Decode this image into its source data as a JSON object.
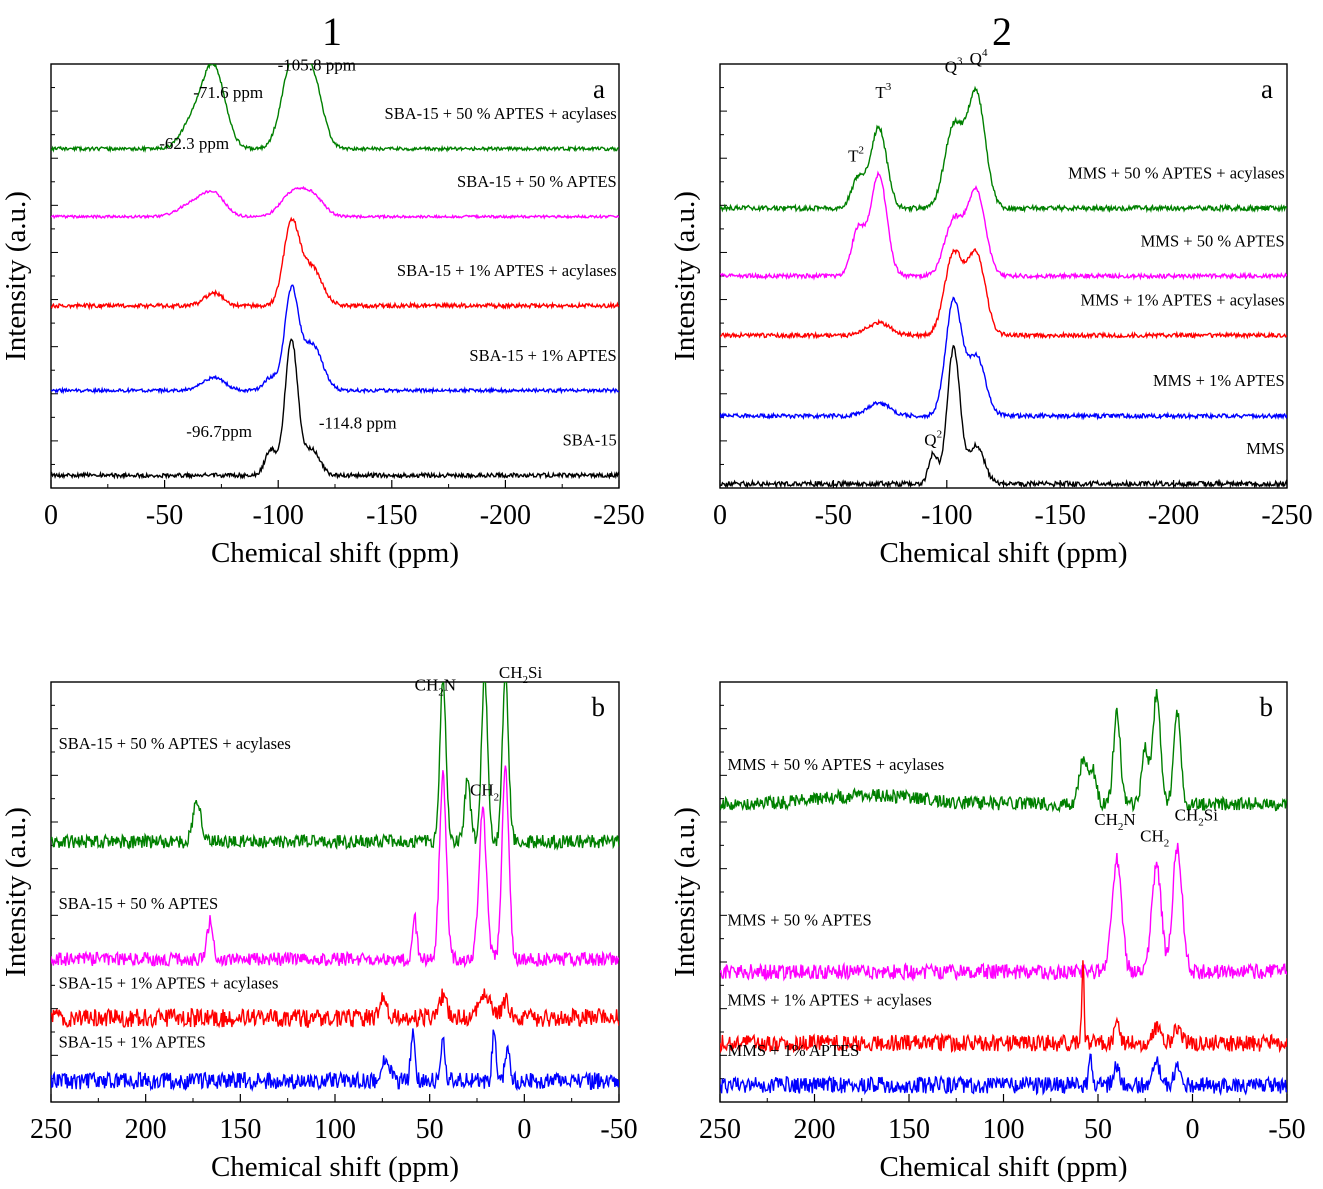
{
  "column_headers": [
    "1",
    "2"
  ],
  "colors": {
    "green": "#008000",
    "magenta": "#ff00ff",
    "red": "#ff0000",
    "blue": "#0000ff",
    "black": "#000000"
  },
  "chart_data": [
    {
      "id": "1a",
      "type": "line",
      "panel_label": "a",
      "xlabel": "Chemical shift (ppm)",
      "ylabel": "Intensity (a.u.)",
      "xlim": [
        0,
        -250
      ],
      "xticks": [
        0,
        -50,
        -100,
        -150,
        -200,
        -250
      ],
      "series": [
        {
          "name": "SBA-15 + 50 % APTES + acylases",
          "color": "#008000",
          "offset": 0.8,
          "noise": 0.004,
          "seed": 11,
          "peaks": [
            [
              -62.3,
              0.06,
              5
            ],
            [
              -71.6,
              0.19,
              5
            ],
            [
              -105.8,
              0.19,
              4.5
            ],
            [
              -114.8,
              0.17,
              4.5
            ]
          ]
        },
        {
          "name": "SBA-15 + 50 % APTES",
          "color": "#ff00ff",
          "offset": 0.64,
          "noise": 0.003,
          "seed": 12,
          "peaks": [
            [
              -62.3,
              0.03,
              6
            ],
            [
              -71.6,
              0.05,
              5
            ],
            [
              -105.8,
              0.05,
              5
            ],
            [
              -114.8,
              0.05,
              5
            ]
          ]
        },
        {
          "name": "SBA-15 + 1% APTES + acylases",
          "color": "#ff0000",
          "offset": 0.43,
          "noise": 0.005,
          "seed": 13,
          "peaks": [
            [
              -71.6,
              0.03,
              4
            ],
            [
              -105.8,
              0.19,
              3.5
            ],
            [
              -114.8,
              0.09,
              4.5
            ]
          ]
        },
        {
          "name": "SBA-15 + 1% APTES",
          "color": "#0000ff",
          "offset": 0.23,
          "noise": 0.004,
          "seed": 14,
          "peaks": [
            [
              -71.6,
              0.03,
              5
            ],
            [
              -96.7,
              0.03,
              3
            ],
            [
              -105.8,
              0.23,
              3
            ],
            [
              -114.8,
              0.11,
              4.5
            ]
          ]
        },
        {
          "name": "SBA-15",
          "color": "#000000",
          "offset": 0.03,
          "noise": 0.005,
          "seed": 15,
          "peaks": [
            [
              -96.7,
              0.06,
              2.5
            ],
            [
              -105.8,
              0.32,
              2.8
            ],
            [
              -114.8,
              0.06,
              3.5
            ]
          ]
        }
      ],
      "annotations": [
        {
          "text": "-105.8 ppm",
          "x": -117,
          "y": 0.985
        },
        {
          "text": "-71.6 ppm",
          "x": -78,
          "y": 0.92
        },
        {
          "text": "-62.3 ppm",
          "x": -63,
          "y": 0.8
        },
        {
          "text": "-96.7ppm",
          "x": -74,
          "y": 0.12
        },
        {
          "text": "-114.8 ppm",
          "x": -135,
          "y": 0.14
        }
      ]
    },
    {
      "id": "2a",
      "type": "line",
      "panel_label": "a",
      "xlabel": "Chemical shift (ppm)",
      "ylabel": "Intensity (a.u.)",
      "xlim": [
        0,
        -250
      ],
      "xticks": [
        0,
        -50,
        -100,
        -150,
        -200,
        -250
      ],
      "series": [
        {
          "name": "MMS + 50 % APTES + acylases",
          "color": "#008000",
          "offset": 0.66,
          "noise": 0.006,
          "seed": 21,
          "peaks": [
            [
              -61,
              0.07,
              3
            ],
            [
              -70,
              0.19,
              3.5
            ],
            [
              -103,
              0.19,
              4
            ],
            [
              -113,
              0.27,
              4
            ]
          ]
        },
        {
          "name": "MMS + 50 % APTES",
          "color": "#ff00ff",
          "offset": 0.5,
          "noise": 0.005,
          "seed": 22,
          "peaks": [
            [
              -61,
              0.11,
              3
            ],
            [
              -70,
              0.24,
              3.5
            ],
            [
              -103,
              0.13,
              4
            ],
            [
              -113,
              0.2,
              4
            ]
          ]
        },
        {
          "name": "MMS + 1% APTES + acylases",
          "color": "#ff0000",
          "offset": 0.36,
          "noise": 0.005,
          "seed": 23,
          "peaks": [
            [
              -70,
              0.03,
              5
            ],
            [
              -103,
              0.19,
              4
            ],
            [
              -113,
              0.19,
              4
            ]
          ]
        },
        {
          "name": "MMS + 1% APTES",
          "color": "#0000ff",
          "offset": 0.17,
          "noise": 0.005,
          "seed": 24,
          "peaks": [
            [
              -70,
              0.03,
              5
            ],
            [
              -103,
              0.27,
              3.5
            ],
            [
              -113,
              0.14,
              4
            ]
          ]
        },
        {
          "name": "MMS",
          "color": "#000000",
          "offset": 0.01,
          "noise": 0.006,
          "seed": 25,
          "peaks": [
            [
              -94,
              0.07,
              2
            ],
            [
              -103,
              0.32,
              2.8
            ],
            [
              -113,
              0.09,
              3.5
            ]
          ]
        }
      ],
      "annotations": [
        {
          "text": "T",
          "sup": "2",
          "x": -60,
          "y": 0.77
        },
        {
          "text": "T",
          "sup": "3",
          "x": -72,
          "y": 0.92
        },
        {
          "text": "Q",
          "sup": "3",
          "x": -103,
          "y": 0.98
        },
        {
          "text": "Q",
          "sup": "4",
          "x": -114,
          "y": 1.0
        },
        {
          "text": "Q",
          "sup": "2",
          "x": -94,
          "y": 0.1
        }
      ]
    },
    {
      "id": "1b",
      "type": "line",
      "panel_label": "b",
      "xlabel": "Chemical shift (ppm)",
      "ylabel": "Intensity (a.u.)",
      "xlim": [
        250,
        -50
      ],
      "xticks": [
        250,
        200,
        150,
        100,
        50,
        0,
        -50
      ],
      "series": [
        {
          "name": "SBA-15 + 50 % APTES + acylases",
          "color": "#008000",
          "offset": 0.62,
          "noise": 0.016,
          "seed": 31,
          "peaks": [
            [
              173,
              0.1,
              2
            ],
            [
              43,
              0.38,
              1.6
            ],
            [
              30,
              0.15,
              1.5
            ],
            [
              21,
              0.4,
              1.6
            ],
            [
              10,
              0.4,
              1.6
            ]
          ],
          "label_y": 0.84
        },
        {
          "name": "SBA-15 + 50 % APTES",
          "color": "#ff00ff",
          "offset": 0.34,
          "noise": 0.016,
          "seed": 32,
          "peaks": [
            [
              166,
              0.09,
              1.5
            ],
            [
              58,
              0.1,
              1.2
            ],
            [
              43,
              0.44,
              1.8
            ],
            [
              22,
              0.35,
              2
            ],
            [
              10,
              0.45,
              1.8
            ]
          ],
          "label_y": 0.46
        },
        {
          "name": "SBA-15 + 1% APTES + acylases",
          "color": "#ff0000",
          "offset": 0.2,
          "noise": 0.022,
          "seed": 33,
          "peaks": [
            [
              75,
              0.04,
              2
            ],
            [
              43,
              0.05,
              2
            ],
            [
              21,
              0.05,
              3
            ],
            [
              10,
              0.04,
              2
            ]
          ],
          "label_y": 0.27
        },
        {
          "name": "SBA-15 + 1% APTES",
          "color": "#0000ff",
          "offset": 0.05,
          "noise": 0.02,
          "seed": 34,
          "peaks": [
            [
              73,
              0.06,
              2
            ],
            [
              59,
              0.12,
              1
            ],
            [
              43,
              0.1,
              1.2
            ],
            [
              16,
              0.12,
              1
            ],
            [
              9,
              0.08,
              1.2
            ]
          ],
          "label_y": 0.13
        }
      ],
      "annotations": [
        {
          "text": "CH",
          "sub": "2",
          "after": "N",
          "x": 47,
          "y": 0.98
        },
        {
          "text": "CH",
          "sub": "2",
          "after": "Si",
          "x": 2,
          "y": 1.01
        },
        {
          "text": "CH",
          "sub": "2",
          "after": "",
          "x": 21,
          "y": 0.73
        }
      ]
    },
    {
      "id": "2b",
      "type": "line",
      "panel_label": "b",
      "xlabel": "Chemical shift (ppm)",
      "ylabel": "Intensity (a.u.)",
      "xlim": [
        250,
        -50
      ],
      "xticks": [
        250,
        200,
        150,
        100,
        50,
        0,
        -50
      ],
      "series": [
        {
          "name": "MMS + 50 % APTES + acylases",
          "color": "#008000",
          "offset": 0.71,
          "noise": 0.016,
          "seed": 41,
          "peaks": [
            [
              170,
              0.02,
              25
            ],
            [
              58,
              0.1,
              2
            ],
            [
              53,
              0.08,
              2
            ],
            [
              40,
              0.22,
              1.8
            ],
            [
              25,
              0.13,
              1.8
            ],
            [
              19,
              0.26,
              2
            ],
            [
              8,
              0.22,
              1.8
            ]
          ],
          "label_y": 0.79
        },
        {
          "name": "MMS + 50 % APTES",
          "color": "#ff00ff",
          "offset": 0.31,
          "noise": 0.018,
          "seed": 42,
          "peaks": [
            [
              40,
              0.27,
              2.5
            ],
            [
              19,
              0.25,
              2.5
            ],
            [
              8,
              0.3,
              2.5
            ]
          ],
          "label_y": 0.42
        },
        {
          "name": "MMS + 1% APTES + acylases",
          "color": "#ff0000",
          "offset": 0.14,
          "noise": 0.02,
          "seed": 43,
          "peaks": [
            [
              58,
              0.2,
              0.6
            ],
            [
              40,
              0.04,
              1.5
            ],
            [
              19,
              0.04,
              2
            ],
            [
              8,
              0.03,
              2
            ]
          ],
          "label_y": 0.23
        },
        {
          "name": "MMS + 1% APTES",
          "color": "#0000ff",
          "offset": 0.04,
          "noise": 0.02,
          "seed": 44,
          "peaks": [
            [
              54,
              0.07,
              0.7
            ],
            [
              40,
              0.05,
              1.5
            ],
            [
              19,
              0.05,
              2
            ],
            [
              8,
              0.04,
              2
            ]
          ],
          "label_y": 0.11
        }
      ],
      "annotations": [
        {
          "text": "CH",
          "sub": "2",
          "after": "N",
          "x": 41,
          "y": 0.66
        },
        {
          "text": "CH",
          "sub": "2",
          "after": "",
          "x": 20,
          "y": 0.62
        },
        {
          "text": "CH",
          "sub": "2",
          "after": "Si",
          "x": -2,
          "y": 0.67
        }
      ]
    }
  ]
}
